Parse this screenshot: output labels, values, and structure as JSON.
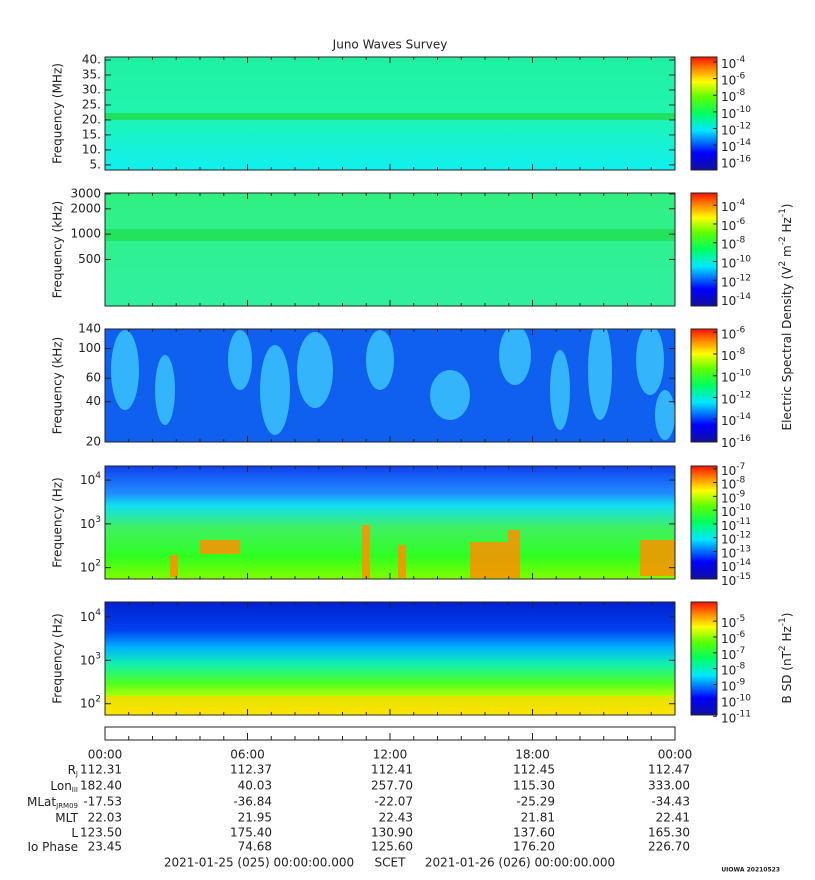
{
  "chart_data": {
    "type": "spectrogram",
    "title": "Juno Waves Survey",
    "panels": [
      {
        "ylabel": "Frequency (MHz)",
        "log": false,
        "ylim": [
          3.3,
          41
        ],
        "yticks": [
          {
            "value": 5,
            "label": "5."
          },
          {
            "value": 10,
            "label": "10."
          },
          {
            "value": 15,
            "label": "15."
          },
          {
            "value": 20,
            "label": "20."
          },
          {
            "value": 25,
            "label": "25."
          },
          {
            "value": 30,
            "label": "30."
          },
          {
            "value": 35,
            "label": "35."
          },
          {
            "value": 40,
            "label": "40."
          }
        ],
        "clim": [
          1e-17,
          0.0004
        ],
        "cticks": [
          {
            "value": 0.0001,
            "label": [
              "10",
              "-4"
            ]
          },
          {
            "value": 1e-06,
            "label": [
              "10",
              "-6"
            ]
          },
          {
            "value": 1e-08,
            "label": [
              "10",
              "-8"
            ]
          },
          {
            "value": 1e-10,
            "label": [
              "10",
              "-10"
            ]
          },
          {
            "value": 1e-12,
            "label": [
              "10",
              "-12"
            ]
          },
          {
            "value": 1e-14,
            "label": [
              "10",
              "-14"
            ]
          },
          {
            "value": 1e-16,
            "label": [
              "10",
              "-16"
            ]
          }
        ]
      },
      {
        "ylabel": "Frequency (kHz)",
        "log": true,
        "ylim": [
          140,
          3080
        ],
        "yticks": [
          500,
          1000,
          2000,
          3000
        ],
        "clim": [
          1.8e-15,
          0.002
        ],
        "cticks": [
          {
            "value": 0.0001,
            "label": [
              "10",
              "-4"
            ]
          },
          {
            "value": 1e-06,
            "label": [
              "10",
              "-6"
            ]
          },
          {
            "value": 1e-08,
            "label": [
              "10",
              "-8"
            ]
          },
          {
            "value": 1e-10,
            "label": [
              "10",
              "-10"
            ]
          },
          {
            "value": 1e-12,
            "label": [
              "10",
              "-12"
            ]
          },
          {
            "value": 1e-14,
            "label": [
              "10",
              "-14"
            ]
          }
        ]
      },
      {
        "ylabel": "Frequency (kHz)",
        "log": true,
        "ylim": [
          20,
          140
        ],
        "yticks": [
          20,
          40,
          60,
          100,
          140
        ],
        "clim": [
          8e-17,
          2e-06
        ],
        "cticks": [
          {
            "value": 1e-06,
            "label": [
              "10",
              "-6"
            ]
          },
          {
            "value": 1e-08,
            "label": [
              "10",
              "-8"
            ]
          },
          {
            "value": 1e-10,
            "label": [
              "10",
              "-10"
            ]
          },
          {
            "value": 1e-12,
            "label": [
              "10",
              "-12"
            ]
          },
          {
            "value": 1e-14,
            "label": [
              "10",
              "-14"
            ]
          },
          {
            "value": 1e-16,
            "label": [
              "10",
              "-16"
            ]
          }
        ]
      },
      {
        "ylabel": "Frequency (Hz)",
        "log": true,
        "ylim": [
          55,
          21000
        ],
        "yticks": [
          {
            "value": 100,
            "label": [
              "10",
              "2"
            ]
          },
          {
            "value": 1000,
            "label": [
              "10",
              "3"
            ]
          },
          {
            "value": 10000,
            "label": [
              "10",
              "4"
            ]
          }
        ],
        "clim": [
          1e-15,
          1.6e-07
        ],
        "cticks": [
          {
            "value": 1e-07,
            "label": [
              "10",
              "-7"
            ]
          },
          {
            "value": 1e-08,
            "label": [
              "10",
              "-8"
            ]
          },
          {
            "value": 1e-09,
            "label": [
              "10",
              "-9"
            ]
          },
          {
            "value": 1e-10,
            "label": [
              "10",
              "-10"
            ]
          },
          {
            "value": 1e-11,
            "label": [
              "10",
              "-11"
            ]
          },
          {
            "value": 1e-12,
            "label": [
              "10",
              "-12"
            ]
          },
          {
            "value": 1e-13,
            "label": [
              "10",
              "-13"
            ]
          },
          {
            "value": 1e-14,
            "label": [
              "10",
              "-14"
            ]
          },
          {
            "value": 1e-15,
            "label": [
              "10",
              "-15"
            ]
          }
        ]
      },
      {
        "ylabel": "Frequency (Hz)",
        "log": true,
        "ylim": [
          55,
          22000
        ],
        "yticks": [
          {
            "value": 100,
            "label": [
              "10",
              "2"
            ]
          },
          {
            "value": 1000,
            "label": [
              "10",
              "3"
            ]
          },
          {
            "value": 10000,
            "label": [
              "10",
              "4"
            ]
          }
        ],
        "clim": [
          1.2e-11,
          0.00016
        ],
        "cticks": [
          {
            "value": 1e-05,
            "label": [
              "10",
              "-5"
            ]
          },
          {
            "value": 1e-06,
            "label": [
              "10",
              "-6"
            ]
          },
          {
            "value": 1e-07,
            "label": [
              "10",
              "-7"
            ]
          },
          {
            "value": 1e-08,
            "label": [
              "10",
              "-8"
            ]
          },
          {
            "value": 1e-09,
            "label": [
              "10",
              "-9"
            ]
          },
          {
            "value": 1e-10,
            "label": [
              "10",
              "-10"
            ]
          },
          {
            "value": 1e-11,
            "label": [
              "10",
              "-11"
            ]
          }
        ]
      }
    ],
    "e_label": [
      "Electric Spectral Density (V",
      "2",
      " m",
      "-2",
      " Hz",
      "-1",
      ")"
    ],
    "b_label": [
      "B SD (nT",
      "2",
      " Hz",
      "-1",
      ")"
    ],
    "xlim": [
      0,
      24
    ],
    "xticks": [
      {
        "value": 0,
        "label": "00:00"
      },
      {
        "value": 6,
        "label": "06:00"
      },
      {
        "value": 12,
        "label": "12:00"
      },
      {
        "value": 18,
        "label": "18:00"
      },
      {
        "value": 24,
        "label": "00:00"
      }
    ],
    "ephemeris": [
      {
        "label": [
          "R",
          "J"
        ],
        "values": [
          "112.31",
          "112.37",
          "112.41",
          "112.45",
          "112.47"
        ]
      },
      {
        "label": [
          "Lon",
          "III"
        ],
        "values": [
          "182.40",
          "40.03",
          "257.70",
          "115.30",
          "333.00"
        ]
      },
      {
        "label": [
          "MLat",
          "JRM09"
        ],
        "values": [
          "-17.53",
          "-36.84",
          "-22.07",
          "-25.29",
          "-34.43"
        ]
      },
      {
        "label": [
          "MLT"
        ],
        "values": [
          "22.03",
          "21.95",
          "22.43",
          "21.81",
          "22.41"
        ]
      },
      {
        "label": [
          "L"
        ],
        "values": [
          "123.50",
          "175.40",
          "130.90",
          "137.60",
          "165.30"
        ]
      },
      {
        "label": [
          "Io Phase"
        ],
        "values": [
          "23.45",
          "74.68",
          "125.60",
          "176.20",
          "226.70"
        ]
      }
    ],
    "footer": {
      "start": "2021-01-25 (025) 00:00:00.000",
      "scet": "SCET",
      "end": "2021-01-26 (026) 00:00:00.000"
    },
    "stamp": "UIOWA 20210523"
  }
}
